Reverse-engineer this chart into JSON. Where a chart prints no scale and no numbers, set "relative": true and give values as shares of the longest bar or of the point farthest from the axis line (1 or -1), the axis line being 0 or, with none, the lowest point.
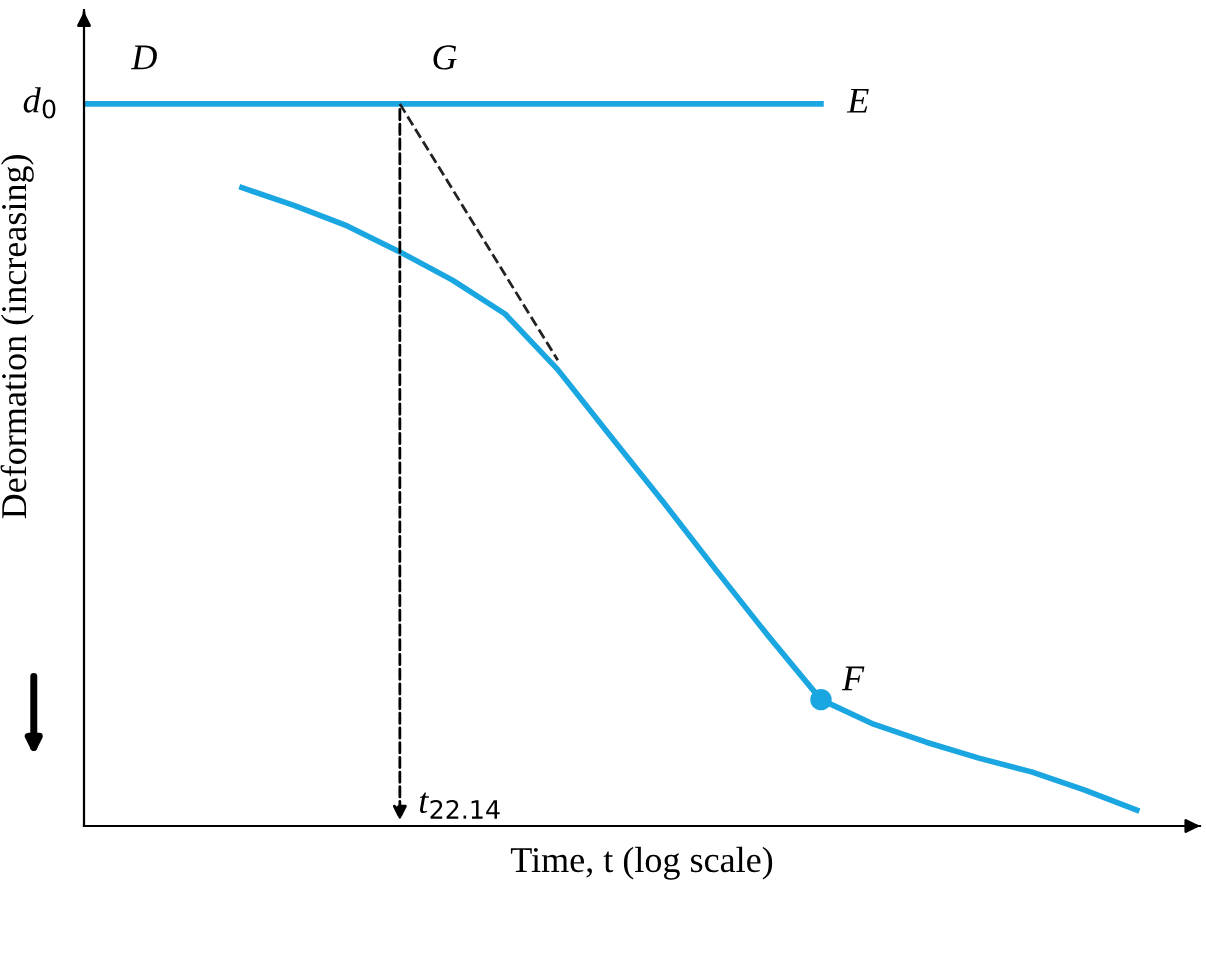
{
  "chart_data": {
    "type": "line",
    "relative": true,
    "xlabel": "Time, t (log scale)",
    "ylabel": "Deformation (increasing)",
    "categories": [
      null,
      null,
      null,
      null,
      null,
      null,
      null,
      null,
      null,
      null,
      null,
      null,
      null,
      null,
      null,
      null,
      null,
      null,
      null,
      null,
      null
    ],
    "series": [
      {
        "color": "#1aa6e0",
        "line_style": "solid",
        "marker": "none",
        "values": [
          1,
          1,
          1,
          1,
          1,
          1,
          1,
          1,
          1,
          1,
          1,
          1,
          1,
          1,
          1,
          null,
          null,
          null,
          null,
          null,
          null
        ]
      },
      {
        "color": "#1aa6e0",
        "line_style": "solid",
        "marker": "none",
        "values": [
          null,
          null,
          null,
          0.884,
          0.859,
          0.831,
          0.795,
          0.756,
          0.709,
          0.632,
          0.54,
          0.449,
          0.355,
          0.263,
          0.175,
          0.141,
          0.116,
          0.094,
          0.075,
          0.05,
          0.022
        ]
      },
      {
        "color": "#222222",
        "line_style": "dashed",
        "marker": "none",
        "values": [
          null,
          null,
          null,
          null,
          null,
          null,
          1,
          null,
          null,
          0.645,
          null,
          null,
          null,
          null,
          null,
          null,
          null,
          null,
          null,
          null,
          null
        ]
      }
    ],
    "annotations": [
      "d$_{0}$",
      "D",
      "G",
      "E",
      "F",
      "t$_{22.14}$"
    ],
    "grid": false
  }
}
